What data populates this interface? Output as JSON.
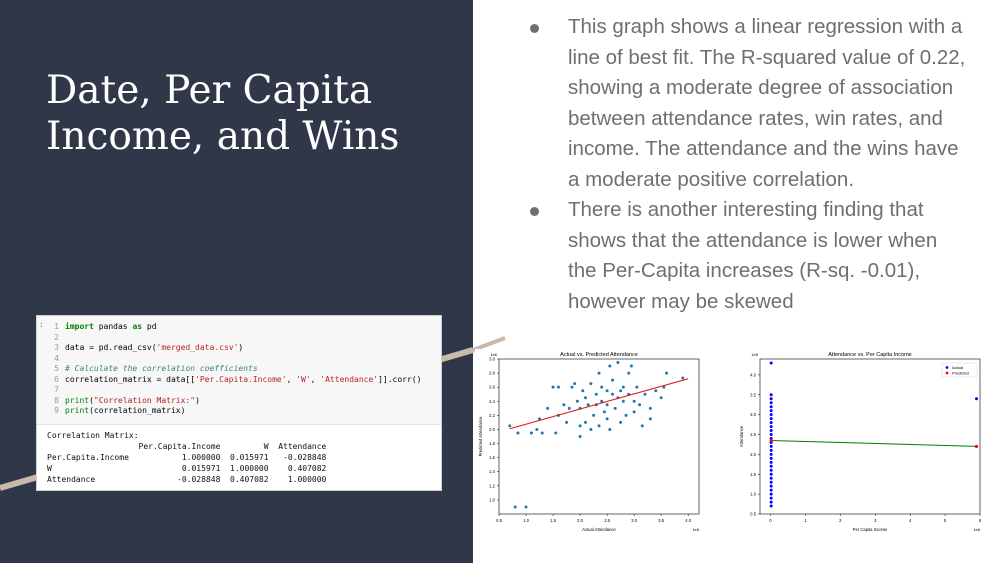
{
  "slide": {
    "title": "Date, Per Capita Income, and Wins"
  },
  "code": {
    "lines": [
      {
        "n": "1",
        "parts": [
          [
            "kw",
            "import"
          ],
          [
            "",
            " pandas "
          ],
          [
            "kw",
            "as"
          ],
          [
            "",
            " pd"
          ]
        ]
      },
      {
        "n": "2",
        "parts": []
      },
      {
        "n": "3",
        "parts": [
          [
            "",
            "data = pd.read_csv("
          ],
          [
            "str",
            "'merged_data.csv'"
          ],
          [
            "",
            ")"
          ]
        ]
      },
      {
        "n": "4",
        "parts": []
      },
      {
        "n": "5",
        "parts": [
          [
            "cm",
            "# Calculate the correlation coefficients"
          ]
        ]
      },
      {
        "n": "6",
        "parts": [
          [
            "",
            "correlation_matrix = data[["
          ],
          [
            "str",
            "'Per.Capita.Income'"
          ],
          [
            "",
            ", "
          ],
          [
            "str",
            "'W'"
          ],
          [
            "",
            ", "
          ],
          [
            "str",
            "'Attendance'"
          ],
          [
            "",
            "]].corr()"
          ]
        ]
      },
      {
        "n": "7",
        "parts": []
      },
      {
        "n": "8",
        "parts": [
          [
            "fn",
            "print"
          ],
          [
            "",
            "("
          ],
          [
            "str",
            "\"Correlation Matrix:\""
          ],
          [
            "",
            ")"
          ]
        ]
      },
      {
        "n": "9",
        "parts": [
          [
            "fn",
            "print"
          ],
          [
            "",
            "(correlation_matrix)"
          ]
        ]
      }
    ],
    "output": "Correlation Matrix:\n                   Per.Capita.Income         W  Attendance\nPer.Capita.Income           1.000000  0.015971   -0.028848\nW                           0.015971  1.000000    0.407082\nAttendance                 -0.028848  0.407082    1.000000"
  },
  "bullets": [
    "This graph shows a linear regression with a line of best fit. The R-squared value of 0.22, showing a moderate degree of association between attendance rates, win rates, and income. The attendance and the wins have a moderate positive correlation.",
    "There is another interesting finding that shows that the attendance is lower when the Per-Capita increases (R-sq. -0.01), however may be skewed"
  ],
  "chart_data": [
    {
      "type": "scatter",
      "title": "Actual vs. Predicted Attendance",
      "xlabel": "Actual Attendance",
      "ylabel": "Predicted Attendance",
      "x_exponent": "1e6",
      "y_exponent": "1e6",
      "xlim": [
        0.5,
        4.2
      ],
      "ylim": [
        0.8,
        3.0
      ],
      "xticks": [
        "0.5",
        "1.0",
        "1.5",
        "2.0",
        "2.5",
        "3.0",
        "3.5",
        "4.0"
      ],
      "yticks": [
        "1.0",
        "1.2",
        "1.4",
        "1.6",
        "1.8",
        "2.0",
        "2.2",
        "2.4",
        "2.6",
        "2.8",
        "3.0"
      ],
      "point_color": "#1f77b4",
      "line_color": "#e31a1c",
      "fit_line": [
        [
          0.7,
          2.01
        ],
        [
          4.0,
          2.72
        ]
      ],
      "points": [
        [
          0.7,
          2.05
        ],
        [
          0.8,
          0.9
        ],
        [
          0.85,
          1.95
        ],
        [
          1.0,
          0.9
        ],
        [
          1.1,
          1.95
        ],
        [
          1.2,
          2.0
        ],
        [
          1.25,
          2.15
        ],
        [
          1.4,
          2.3
        ],
        [
          1.5,
          2.6
        ],
        [
          1.55,
          1.95
        ],
        [
          1.6,
          2.2
        ],
        [
          1.7,
          2.35
        ],
        [
          1.75,
          2.1
        ],
        [
          1.8,
          2.3
        ],
        [
          1.85,
          2.6
        ],
        [
          1.9,
          2.65
        ],
        [
          1.95,
          2.4
        ],
        [
          2.0,
          2.05
        ],
        [
          2.0,
          2.3
        ],
        [
          2.05,
          2.55
        ],
        [
          2.1,
          2.45
        ],
        [
          2.1,
          2.1
        ],
        [
          2.15,
          2.35
        ],
        [
          2.2,
          2.65
        ],
        [
          2.2,
          2.0
        ],
        [
          2.25,
          2.2
        ],
        [
          2.3,
          2.5
        ],
        [
          2.3,
          2.35
        ],
        [
          2.35,
          2.05
        ],
        [
          2.4,
          2.6
        ],
        [
          2.4,
          2.4
        ],
        [
          2.45,
          2.25
        ],
        [
          2.5,
          2.55
        ],
        [
          2.5,
          2.35
        ],
        [
          2.55,
          2.0
        ],
        [
          2.6,
          2.5
        ],
        [
          2.6,
          2.7
        ],
        [
          2.65,
          2.3
        ],
        [
          2.7,
          2.45
        ],
        [
          2.75,
          2.1
        ],
        [
          2.8,
          2.6
        ],
        [
          2.8,
          2.4
        ],
        [
          2.85,
          2.2
        ],
        [
          2.9,
          2.5
        ],
        [
          2.9,
          2.8
        ],
        [
          3.0,
          2.4
        ],
        [
          3.0,
          2.25
        ],
        [
          3.05,
          2.6
        ],
        [
          3.1,
          2.35
        ],
        [
          3.2,
          2.5
        ],
        [
          3.3,
          2.3
        ],
        [
          3.4,
          2.55
        ],
        [
          3.5,
          2.45
        ],
        [
          3.55,
          2.6
        ],
        [
          3.6,
          2.8
        ],
        [
          2.55,
          2.9
        ],
        [
          2.7,
          2.95
        ],
        [
          2.95,
          2.9
        ],
        [
          1.3,
          1.95
        ],
        [
          1.6,
          2.6
        ],
        [
          2.35,
          2.8
        ],
        [
          2.5,
          2.15
        ],
        [
          2.0,
          1.9
        ],
        [
          3.3,
          2.15
        ],
        [
          3.15,
          2.05
        ],
        [
          3.9,
          2.73
        ],
        [
          2.75,
          2.55
        ]
      ]
    },
    {
      "type": "scatter",
      "title": "Attendance vs. Per Capita Income",
      "xlabel": "Per Capita Income",
      "ylabel": "Attendance",
      "x_exponent": "1e6",
      "y_exponent": "1e6",
      "xlim": [
        -0.3,
        6.0
      ],
      "ylim": [
        0.5,
        4.4
      ],
      "xticks": [
        "0",
        "1",
        "2",
        "3",
        "4",
        "5",
        "6"
      ],
      "yticks": [
        "0.5",
        "1.0",
        "1.5",
        "2.0",
        "2.5",
        "3.0",
        "3.5",
        "4.0"
      ],
      "legend": [
        "Actual",
        "Predicted"
      ],
      "legend_position": "top-right",
      "actual_color": "#0000ff",
      "predicted_color": "#ff0000",
      "line_color": "#008000",
      "fit_line": [
        [
          0.0,
          2.35
        ],
        [
          5.9,
          2.2
        ]
      ],
      "actual_points": [
        [
          0.02,
          4.3
        ],
        [
          0.02,
          3.5
        ],
        [
          0.02,
          3.4
        ],
        [
          0.02,
          3.3
        ],
        [
          0.02,
          3.2
        ],
        [
          0.02,
          3.1
        ],
        [
          0.02,
          3.0
        ],
        [
          0.02,
          2.9
        ],
        [
          0.02,
          2.8
        ],
        [
          0.02,
          2.7
        ],
        [
          0.02,
          2.6
        ],
        [
          0.02,
          2.5
        ],
        [
          0.02,
          2.4
        ],
        [
          0.02,
          2.3
        ],
        [
          0.02,
          2.2
        ],
        [
          0.02,
          2.1
        ],
        [
          0.02,
          2.0
        ],
        [
          0.02,
          1.9
        ],
        [
          0.02,
          1.8
        ],
        [
          0.02,
          1.7
        ],
        [
          0.02,
          1.6
        ],
        [
          0.02,
          1.5
        ],
        [
          0.02,
          1.4
        ],
        [
          0.02,
          1.3
        ],
        [
          0.02,
          1.2
        ],
        [
          0.02,
          1.1
        ],
        [
          0.02,
          1.0
        ],
        [
          0.02,
          0.9
        ],
        [
          0.02,
          0.8
        ],
        [
          0.02,
          0.7
        ],
        [
          5.9,
          3.4
        ]
      ],
      "predicted_points": [
        [
          0.02,
          2.35
        ],
        [
          5.9,
          2.2
        ]
      ]
    }
  ]
}
